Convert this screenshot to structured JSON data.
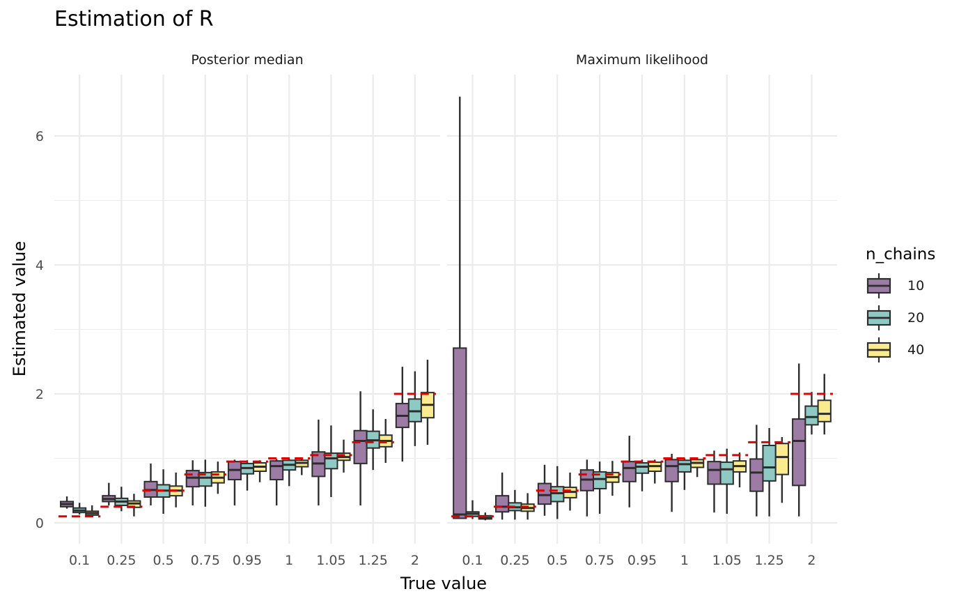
{
  "title": "Estimation of R",
  "colors": {
    "n10": "#9c7ba5",
    "n20": "#8ec9c4",
    "n40": "#fbeb8f",
    "true_line": "#e00000",
    "box_line": "#2d2d2d",
    "grid": "#ebebeb"
  },
  "chart_data": {
    "type": "boxplot",
    "title": "Estimation of R",
    "xlabel": "True value",
    "ylabel": "Estimated value",
    "ylim": [
      -0.25,
      6.95
    ],
    "yticks": [
      0,
      2,
      4,
      6
    ],
    "grid": true,
    "legend": {
      "title": "n_chains",
      "position": "right",
      "entries": [
        "10",
        "20",
        "40"
      ]
    },
    "categories": [
      "0.1",
      "0.25",
      "0.5",
      "0.75",
      "0.95",
      "1",
      "1.05",
      "1.25",
      "2"
    ],
    "true_values": [
      0.1,
      0.25,
      0.5,
      0.75,
      0.95,
      1,
      1.05,
      1.25,
      2
    ],
    "panels": [
      {
        "name": "Posterior median",
        "series": [
          {
            "name": "10",
            "stats": [
              [
                0.22,
                0.25,
                0.29,
                0.33,
                0.41
              ],
              [
                0.27,
                0.33,
                0.37,
                0.42,
                0.62
              ],
              [
                0.27,
                0.4,
                0.51,
                0.64,
                0.92
              ],
              [
                0.27,
                0.56,
                0.7,
                0.81,
                0.97
              ],
              [
                0.27,
                0.67,
                0.82,
                0.95,
                0.98
              ],
              [
                0.27,
                0.67,
                0.88,
                0.96,
                0.99
              ],
              [
                0.27,
                0.72,
                0.92,
                1.1,
                1.6
              ],
              [
                0.27,
                0.92,
                1.27,
                1.43,
                2.04
              ],
              [
                0.95,
                1.48,
                1.66,
                1.85,
                2.42
              ]
            ]
          },
          {
            "name": "20",
            "stats": [
              [
                0.13,
                0.16,
                0.19,
                0.23,
                0.31
              ],
              [
                0.18,
                0.27,
                0.33,
                0.38,
                0.56
              ],
              [
                0.14,
                0.4,
                0.5,
                0.59,
                0.83
              ],
              [
                0.25,
                0.57,
                0.7,
                0.78,
                0.98
              ],
              [
                0.5,
                0.76,
                0.85,
                0.92,
                0.97
              ],
              [
                0.57,
                0.82,
                0.9,
                0.97,
                0.99
              ],
              [
                0.4,
                0.84,
                1.0,
                1.08,
                1.51
              ],
              [
                0.82,
                1.16,
                1.28,
                1.42,
                1.76
              ],
              [
                1.19,
                1.57,
                1.73,
                1.92,
                2.35
              ]
            ]
          },
          {
            "name": "40",
            "stats": [
              [
                0.1,
                0.12,
                0.15,
                0.18,
                0.27
              ],
              [
                0.1,
                0.24,
                0.3,
                0.34,
                0.45
              ],
              [
                0.24,
                0.42,
                0.5,
                0.57,
                0.78
              ],
              [
                0.45,
                0.62,
                0.7,
                0.79,
                0.95
              ],
              [
                0.63,
                0.8,
                0.87,
                0.93,
                0.97
              ],
              [
                0.74,
                0.87,
                0.93,
                0.97,
                0.99
              ],
              [
                0.78,
                0.97,
                1.02,
                1.08,
                1.29
              ],
              [
                0.93,
                1.18,
                1.27,
                1.36,
                1.61
              ],
              [
                1.21,
                1.63,
                1.83,
                2.02,
                2.53
              ]
            ]
          }
        ]
      },
      {
        "name": "Maximum likelihood",
        "series": [
          {
            "name": "10",
            "stats": [
              [
                0.06,
                0.07,
                0.13,
                2.71,
                6.61
              ],
              [
                0.05,
                0.17,
                0.25,
                0.42,
                0.78
              ],
              [
                0.11,
                0.29,
                0.43,
                0.61,
                0.9
              ],
              [
                0.1,
                0.5,
                0.67,
                0.82,
                0.98
              ],
              [
                0.24,
                0.64,
                0.85,
                0.95,
                1.35
              ],
              [
                0.17,
                0.64,
                0.88,
                0.98,
                1.07
              ],
              [
                0.16,
                0.6,
                0.82,
                0.95,
                1.12
              ],
              [
                0.1,
                0.49,
                0.78,
                0.99,
                1.52
              ],
              [
                0.1,
                0.58,
                1.27,
                1.61,
                2.47
              ]
            ]
          },
          {
            "name": "20",
            "stats": [
              [
                0.06,
                0.1,
                0.14,
                0.17,
                0.35
              ],
              [
                0.05,
                0.19,
                0.24,
                0.31,
                0.51
              ],
              [
                0.06,
                0.33,
                0.46,
                0.56,
                0.88
              ],
              [
                0.14,
                0.53,
                0.68,
                0.79,
                0.95
              ],
              [
                0.49,
                0.77,
                0.87,
                0.93,
                0.98
              ],
              [
                0.51,
                0.79,
                0.91,
                0.97,
                1.0
              ],
              [
                0.14,
                0.6,
                0.83,
                0.94,
                1.15
              ],
              [
                0.1,
                0.65,
                0.86,
                1.2,
                1.47
              ],
              [
                1.37,
                1.52,
                1.64,
                1.81,
                2.03
              ]
            ]
          },
          {
            "name": "40",
            "stats": [
              [
                0.04,
                0.06,
                0.08,
                0.11,
                0.16
              ],
              [
                0.05,
                0.18,
                0.23,
                0.29,
                0.46
              ],
              [
                0.19,
                0.39,
                0.48,
                0.55,
                0.78
              ],
              [
                0.42,
                0.63,
                0.71,
                0.78,
                0.96
              ],
              [
                0.61,
                0.8,
                0.88,
                0.94,
                0.98
              ],
              [
                0.71,
                0.86,
                0.93,
                0.98,
                1.01
              ],
              [
                0.55,
                0.79,
                0.88,
                0.96,
                1.09
              ],
              [
                0.31,
                0.75,
                1.02,
                1.23,
                1.33
              ],
              [
                1.37,
                1.57,
                1.69,
                1.9,
                2.31
              ]
            ]
          }
        ]
      }
    ]
  }
}
